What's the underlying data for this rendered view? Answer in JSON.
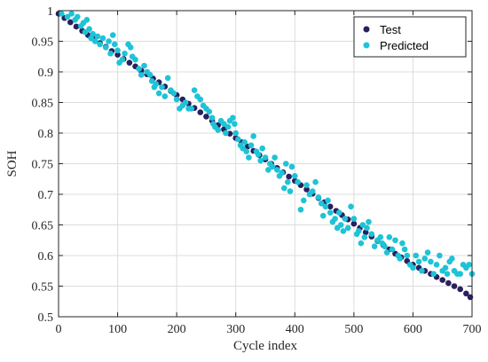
{
  "chart_data": {
    "type": "scatter",
    "title": "",
    "xlabel": "Cycle index",
    "ylabel": "SOH",
    "xlim": [
      0,
      700
    ],
    "ylim": [
      0.5,
      1.0
    ],
    "xticks": [
      0,
      100,
      200,
      300,
      400,
      500,
      600,
      700
    ],
    "yticks": [
      0.5,
      0.55,
      0.6,
      0.65,
      0.7,
      0.75,
      0.8,
      0.85,
      0.9,
      0.95,
      1
    ],
    "xtick_labels": [
      "0",
      "100",
      "200",
      "300",
      "400",
      "500",
      "600",
      "700"
    ],
    "ytick_labels": [
      "0.5",
      "0.55",
      "0.6",
      "0.65",
      "0.7",
      "0.75",
      "0.8",
      "0.85",
      "0.9",
      "0.95",
      "1"
    ],
    "grid": true,
    "legend_position": "top-right",
    "series": [
      {
        "name": "Test",
        "color": "#2a1f5f",
        "points": [
          [
            0,
            0.995
          ],
          [
            10,
            0.988
          ],
          [
            20,
            0.981
          ],
          [
            30,
            0.974
          ],
          [
            40,
            0.967
          ],
          [
            50,
            0.96
          ],
          [
            60,
            0.954
          ],
          [
            70,
            0.947
          ],
          [
            80,
            0.941
          ],
          [
            90,
            0.934
          ],
          [
            100,
            0.928
          ],
          [
            110,
            0.921
          ],
          [
            120,
            0.915
          ],
          [
            130,
            0.909
          ],
          [
            140,
            0.902
          ],
          [
            150,
            0.896
          ],
          [
            160,
            0.889
          ],
          [
            170,
            0.883
          ],
          [
            180,
            0.876
          ],
          [
            190,
            0.869
          ],
          [
            200,
            0.862
          ],
          [
            210,
            0.855
          ],
          [
            220,
            0.848
          ],
          [
            230,
            0.841
          ],
          [
            240,
            0.834
          ],
          [
            250,
            0.827
          ],
          [
            260,
            0.82
          ],
          [
            270,
            0.813
          ],
          [
            280,
            0.806
          ],
          [
            290,
            0.799
          ],
          [
            300,
            0.792
          ],
          [
            310,
            0.785
          ],
          [
            320,
            0.778
          ],
          [
            330,
            0.771
          ],
          [
            340,
            0.764
          ],
          [
            350,
            0.757
          ],
          [
            360,
            0.75
          ],
          [
            370,
            0.743
          ],
          [
            380,
            0.736
          ],
          [
            390,
            0.729
          ],
          [
            400,
            0.722
          ],
          [
            410,
            0.715
          ],
          [
            420,
            0.708
          ],
          [
            430,
            0.701
          ],
          [
            440,
            0.694
          ],
          [
            450,
            0.687
          ],
          [
            460,
            0.68
          ],
          [
            470,
            0.673
          ],
          [
            480,
            0.666
          ],
          [
            490,
            0.659
          ],
          [
            500,
            0.652
          ],
          [
            510,
            0.645
          ],
          [
            520,
            0.638
          ],
          [
            530,
            0.631
          ],
          [
            540,
            0.624
          ],
          [
            550,
            0.617
          ],
          [
            560,
            0.61
          ],
          [
            570,
            0.603
          ],
          [
            580,
            0.597
          ],
          [
            590,
            0.591
          ],
          [
            600,
            0.585
          ],
          [
            610,
            0.58
          ],
          [
            620,
            0.575
          ],
          [
            630,
            0.57
          ],
          [
            640,
            0.565
          ],
          [
            650,
            0.56
          ],
          [
            660,
            0.555
          ],
          [
            670,
            0.55
          ],
          [
            680,
            0.545
          ],
          [
            690,
            0.538
          ],
          [
            697,
            0.532
          ]
        ]
      },
      {
        "name": "Predicted",
        "color": "#1ec3d6",
        "points": [
          [
            5,
            0.995
          ],
          [
            15,
            0.99
          ],
          [
            22,
            0.995
          ],
          [
            28,
            0.985
          ],
          [
            32,
            0.99
          ],
          [
            38,
            0.975
          ],
          [
            42,
            0.98
          ],
          [
            45,
            0.965
          ],
          [
            48,
            0.985
          ],
          [
            52,
            0.97
          ],
          [
            55,
            0.955
          ],
          [
            58,
            0.962
          ],
          [
            62,
            0.95
          ],
          [
            66,
            0.958
          ],
          [
            70,
            0.945
          ],
          [
            75,
            0.955
          ],
          [
            80,
            0.94
          ],
          [
            85,
            0.95
          ],
          [
            88,
            0.93
          ],
          [
            92,
            0.96
          ],
          [
            95,
            0.945
          ],
          [
            100,
            0.935
          ],
          [
            103,
            0.915
          ],
          [
            108,
            0.92
          ],
          [
            112,
            0.93
          ],
          [
            118,
            0.945
          ],
          [
            122,
            0.94
          ],
          [
            125,
            0.925
          ],
          [
            130,
            0.92
          ],
          [
            136,
            0.905
          ],
          [
            140,
            0.895
          ],
          [
            145,
            0.91
          ],
          [
            150,
            0.9
          ],
          [
            155,
            0.895
          ],
          [
            158,
            0.885
          ],
          [
            162,
            0.875
          ],
          [
            165,
            0.88
          ],
          [
            170,
            0.865
          ],
          [
            175,
            0.875
          ],
          [
            180,
            0.86
          ],
          [
            185,
            0.89
          ],
          [
            190,
            0.87
          ],
          [
            195,
            0.865
          ],
          [
            200,
            0.855
          ],
          [
            205,
            0.84
          ],
          [
            210,
            0.845
          ],
          [
            215,
            0.85
          ],
          [
            220,
            0.84
          ],
          [
            225,
            0.84
          ],
          [
            230,
            0.87
          ],
          [
            235,
            0.86
          ],
          [
            240,
            0.855
          ],
          [
            245,
            0.845
          ],
          [
            250,
            0.84
          ],
          [
            255,
            0.835
          ],
          [
            260,
            0.825
          ],
          [
            262,
            0.815
          ],
          [
            265,
            0.81
          ],
          [
            270,
            0.805
          ],
          [
            275,
            0.82
          ],
          [
            280,
            0.815
          ],
          [
            283,
            0.8
          ],
          [
            287,
            0.81
          ],
          [
            290,
            0.82
          ],
          [
            295,
            0.825
          ],
          [
            298,
            0.815
          ],
          [
            300,
            0.8
          ],
          [
            304,
            0.79
          ],
          [
            308,
            0.78
          ],
          [
            312,
            0.775
          ],
          [
            315,
            0.785
          ],
          [
            318,
            0.77
          ],
          [
            322,
            0.76
          ],
          [
            326,
            0.78
          ],
          [
            330,
            0.795
          ],
          [
            335,
            0.77
          ],
          [
            338,
            0.765
          ],
          [
            342,
            0.755
          ],
          [
            345,
            0.775
          ],
          [
            350,
            0.76
          ],
          [
            355,
            0.74
          ],
          [
            358,
            0.75
          ],
          [
            362,
            0.745
          ],
          [
            366,
            0.76
          ],
          [
            370,
            0.74
          ],
          [
            374,
            0.73
          ],
          [
            378,
            0.735
          ],
          [
            382,
            0.71
          ],
          [
            385,
            0.75
          ],
          [
            388,
            0.72
          ],
          [
            392,
            0.705
          ],
          [
            395,
            0.745
          ],
          [
            400,
            0.73
          ],
          [
            405,
            0.72
          ],
          [
            410,
            0.675
          ],
          [
            415,
            0.69
          ],
          [
            420,
            0.715
          ],
          [
            425,
            0.7
          ],
          [
            430,
            0.705
          ],
          [
            435,
            0.72
          ],
          [
            440,
            0.695
          ],
          [
            445,
            0.685
          ],
          [
            448,
            0.665
          ],
          [
            452,
            0.68
          ],
          [
            456,
            0.69
          ],
          [
            460,
            0.67
          ],
          [
            464,
            0.655
          ],
          [
            468,
            0.66
          ],
          [
            472,
            0.645
          ],
          [
            475,
            0.67
          ],
          [
            478,
            0.65
          ],
          [
            482,
            0.64
          ],
          [
            485,
            0.66
          ],
          [
            490,
            0.645
          ],
          [
            495,
            0.68
          ],
          [
            500,
            0.66
          ],
          [
            505,
            0.635
          ],
          [
            508,
            0.64
          ],
          [
            512,
            0.62
          ],
          [
            515,
            0.65
          ],
          [
            518,
            0.63
          ],
          [
            522,
            0.645
          ],
          [
            525,
            0.655
          ],
          [
            530,
            0.635
          ],
          [
            535,
            0.615
          ],
          [
            540,
            0.625
          ],
          [
            545,
            0.63
          ],
          [
            548,
            0.62
          ],
          [
            552,
            0.615
          ],
          [
            556,
            0.605
          ],
          [
            560,
            0.63
          ],
          [
            565,
            0.61
          ],
          [
            570,
            0.625
          ],
          [
            575,
            0.6
          ],
          [
            578,
            0.595
          ],
          [
            582,
            0.62
          ],
          [
            586,
            0.61
          ],
          [
            590,
            0.6
          ],
          [
            595,
            0.585
          ],
          [
            600,
            0.58
          ],
          [
            605,
            0.6
          ],
          [
            610,
            0.59
          ],
          [
            615,
            0.575
          ],
          [
            620,
            0.595
          ],
          [
            625,
            0.605
          ],
          [
            630,
            0.59
          ],
          [
            635,
            0.57
          ],
          [
            640,
            0.585
          ],
          [
            645,
            0.6
          ],
          [
            650,
            0.575
          ],
          [
            655,
            0.58
          ],
          [
            658,
            0.57
          ],
          [
            662,
            0.59
          ],
          [
            666,
            0.595
          ],
          [
            670,
            0.575
          ],
          [
            675,
            0.57
          ],
          [
            680,
            0.57
          ],
          [
            685,
            0.585
          ],
          [
            690,
            0.58
          ],
          [
            695,
            0.585
          ],
          [
            700,
            0.57
          ]
        ]
      }
    ]
  }
}
